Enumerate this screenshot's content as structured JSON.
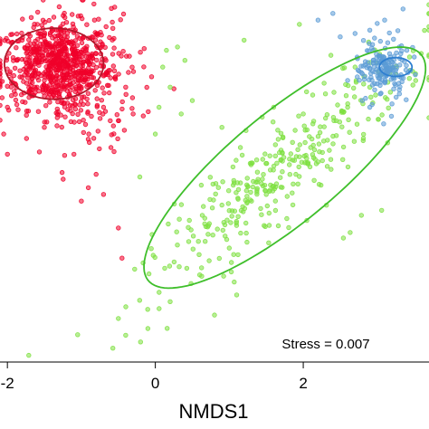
{
  "chart_data": {
    "type": "scatter",
    "title": "",
    "xlabel": "NMDS1",
    "ylabel": "",
    "xlim": [
      -2.1,
      3.7
    ],
    "ylim": [
      -2.9,
      2.5
    ],
    "x_ticks": [
      {
        "value": -2,
        "label": "-2"
      },
      {
        "value": 0,
        "label": "0"
      },
      {
        "value": 2,
        "label": "2"
      }
    ],
    "annotation": "Stress = 0.007",
    "grid": false,
    "legend": "none",
    "series": [
      {
        "color": "#f0002a",
        "ellipse_color": "#b2182b",
        "center": [
          -1.35,
          1.52
        ],
        "spread": [
          0.38,
          0.32
        ],
        "tail_spread": [
          0.55,
          0.55
        ],
        "ellipse": {
          "center": [
            -1.37,
            1.55
          ],
          "radii": [
            0.67,
            0.53
          ],
          "angle_deg": 0
        },
        "points": [
          [
            -1.3,
            1.5
          ],
          [
            -1.1,
            1.6
          ],
          [
            -1.5,
            1.3
          ],
          [
            -1.2,
            1.9
          ],
          [
            -1.7,
            1.6
          ],
          [
            -0.9,
            1.4
          ],
          [
            -1.4,
            1.8
          ],
          [
            -1.6,
            1.2
          ],
          [
            -1.0,
            1.2
          ],
          [
            -0.8,
            1.7
          ],
          [
            -1.8,
            1.9
          ],
          [
            -1.3,
            1.1
          ],
          [
            -0.7,
            0.9
          ],
          [
            -0.5,
            0.7
          ],
          [
            -0.4,
            1.2
          ],
          [
            -0.3,
            0.8
          ],
          [
            -0.6,
            0.3
          ],
          [
            -0.9,
            0.5
          ],
          [
            -1.1,
            0.2
          ],
          [
            -0.8,
            -0.1
          ],
          [
            -0.7,
            -0.4
          ],
          [
            -0.5,
            -0.9
          ],
          [
            -0.45,
            -1.35
          ],
          [
            -1.0,
            -0.5
          ],
          [
            -1.5,
            0.6
          ],
          [
            -2.0,
            0.9
          ],
          [
            -2.05,
            0.5
          ],
          [
            -2.0,
            0.2
          ]
        ]
      },
      {
        "color": "#7ee040",
        "ellipse_color": "#3fbf2b",
        "center": [
          1.5,
          -0.3
        ],
        "spread": [
          0.25,
          0.15
        ],
        "tail_spread": [
          0.45,
          0.35
        ],
        "ellipse": {
          "center": [
            1.75,
            0.0
          ],
          "radii": [
            2.5,
            0.78
          ],
          "angle_deg": 43
        },
        "points": [
          [
            0.15,
            1.75
          ],
          [
            0.3,
            1.8
          ],
          [
            0.1,
            1.5
          ],
          [
            0.4,
            1.6
          ],
          [
            0.2,
            1.2
          ],
          [
            0.05,
            0.9
          ],
          [
            0.35,
            0.8
          ],
          [
            0.0,
            0.5
          ],
          [
            0.5,
            1.0
          ],
          [
            1.2,
            1.9
          ],
          [
            1.15,
            0.3
          ],
          [
            1.3,
            -0.5
          ],
          [
            0.9,
            0.6
          ],
          [
            1.6,
            0.9
          ],
          [
            2.0,
            0.8
          ],
          [
            2.3,
            1.1
          ],
          [
            2.1,
            0.3
          ],
          [
            1.9,
            -0.1
          ],
          [
            1.5,
            -0.4
          ],
          [
            1.0,
            -1.2
          ],
          [
            0.6,
            -1.6
          ],
          [
            0.2,
            -2.0
          ],
          [
            -0.1,
            -2.4
          ],
          [
            -0.4,
            -2.5
          ],
          [
            -0.5,
            -2.25
          ],
          [
            -0.2,
            -2.6
          ],
          [
            0.8,
            -2.2
          ],
          [
            1.1,
            -1.9
          ],
          [
            2.6,
            0.9
          ],
          [
            2.9,
            1.2
          ],
          [
            2.7,
            1.5
          ]
        ]
      },
      {
        "color": "#5b9bd5",
        "ellipse_color": "#2f7fd0",
        "center": [
          3.1,
          1.45
        ],
        "spread": [
          0.14,
          0.16
        ],
        "tail_spread": [
          0.2,
          0.35
        ],
        "ellipse": {
          "center": [
            3.25,
            1.5
          ],
          "radii": [
            0.22,
            0.14
          ],
          "angle_deg": 0
        },
        "points": [
          [
            2.2,
            2.2
          ],
          [
            2.4,
            2.3
          ],
          [
            2.9,
            2.05
          ],
          [
            3.0,
            2.15
          ],
          [
            3.1,
            2.2
          ],
          [
            2.7,
            2.0
          ],
          [
            2.5,
            1.95
          ],
          [
            3.3,
            1.8
          ],
          [
            3.4,
            1.75
          ],
          [
            3.5,
            1.65
          ],
          [
            3.45,
            1.45
          ],
          [
            3.3,
            1.1
          ],
          [
            3.2,
            0.95
          ],
          [
            2.9,
            0.9
          ],
          [
            2.8,
            1.0
          ],
          [
            3.0,
            1.25
          ],
          [
            2.6,
            1.3
          ]
        ]
      }
    ]
  }
}
